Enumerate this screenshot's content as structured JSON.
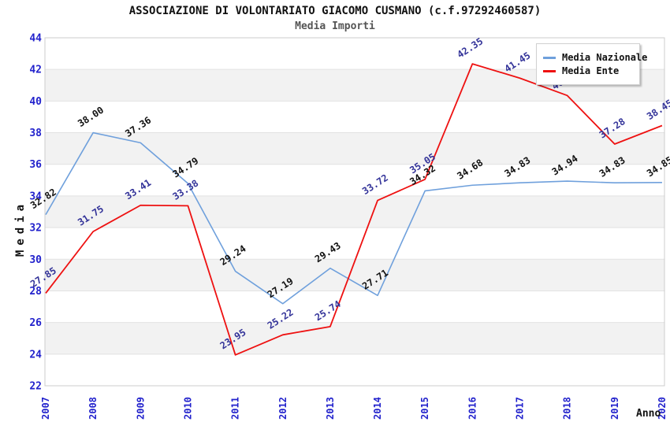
{
  "header": {
    "title": "ASSOCIAZIONE DI VOLONTARIATO GIACOMO CUSMANO (c.f.97292460587)",
    "subtitle": "Media Importi"
  },
  "axes": {
    "y_label": "Media",
    "x_label": "Anno"
  },
  "colors": {
    "national_line": "#6fa0dc",
    "entity_line": "#ee1111",
    "tick_text": "#2222cc",
    "national_label_text": "#111111",
    "entity_label_text": "#333399",
    "band_fill": "#f2f2f2",
    "grid_line": "#e2e2e2",
    "plot_border": "#cccccc",
    "title_text": "#111111",
    "subtitle_text": "#555555"
  },
  "chart_data": {
    "type": "line",
    "title": "ASSOCIAZIONE DI VOLONTARIATO GIACOMO CUSMANO (c.f.97292460587)",
    "subtitle": "Media Importi",
    "xlabel": "Anno",
    "ylabel": "Media",
    "x": [
      "2007",
      "2008",
      "2009",
      "2010",
      "2011",
      "2012",
      "2013",
      "2014",
      "2015",
      "2016",
      "2017",
      "2018",
      "2019",
      "2020"
    ],
    "ylim": [
      22,
      44
    ],
    "ytick_step": 2,
    "grid": true,
    "banded_background": true,
    "legend_position": "top-right",
    "point_labels": true,
    "series": [
      {
        "name": "Media Nazionale",
        "color": "#6fa0dc",
        "label_color": "#111111",
        "values": [
          32.82,
          38.0,
          37.36,
          34.79,
          29.24,
          27.19,
          29.43,
          27.71,
          34.32,
          34.68,
          34.83,
          34.94,
          34.83,
          34.85
        ]
      },
      {
        "name": "Media Ente",
        "color": "#ee1111",
        "label_color": "#333399",
        "values": [
          27.85,
          31.75,
          33.41,
          33.38,
          23.95,
          25.22,
          25.74,
          33.72,
          35.05,
          42.35,
          41.45,
          40.35,
          37.28,
          38.45
        ]
      }
    ]
  }
}
